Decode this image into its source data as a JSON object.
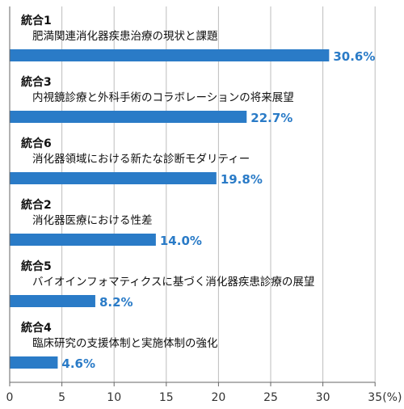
{
  "chart_data": {
    "type": "bar",
    "orientation": "horizontal",
    "categories": [
      {
        "id": "統合1",
        "label": "肥満関連消化器疾患治療の現状と課題"
      },
      {
        "id": "統合3",
        "label": "内視鏡診療と外科手術のコラボレーションの将来展望"
      },
      {
        "id": "統合6",
        "label": "消化器領域における新たな診断モダリティー"
      },
      {
        "id": "統合2",
        "label": "消化器医療における性差"
      },
      {
        "id": "統合5",
        "label": "バイオインフォマティクスに基づく消化器疾患診療の展望"
      },
      {
        "id": "統合4",
        "label": "臨床研究の支援体制と実施体制の強化"
      }
    ],
    "values": [
      30.6,
      22.7,
      19.8,
      14.0,
      8.2,
      4.6
    ],
    "value_labels": [
      "30.6%",
      "22.7%",
      "19.8%",
      "14.0%",
      "8.2%",
      "4.6%"
    ],
    "xlim": [
      0,
      35
    ],
    "xticks": [
      "0",
      "5",
      "10",
      "15",
      "20",
      "25",
      "30",
      "35"
    ],
    "x_unit_label": "(%)",
    "bar_color": "#2a7bc7",
    "value_label_color": "#2a7bc7",
    "grid": true
  }
}
